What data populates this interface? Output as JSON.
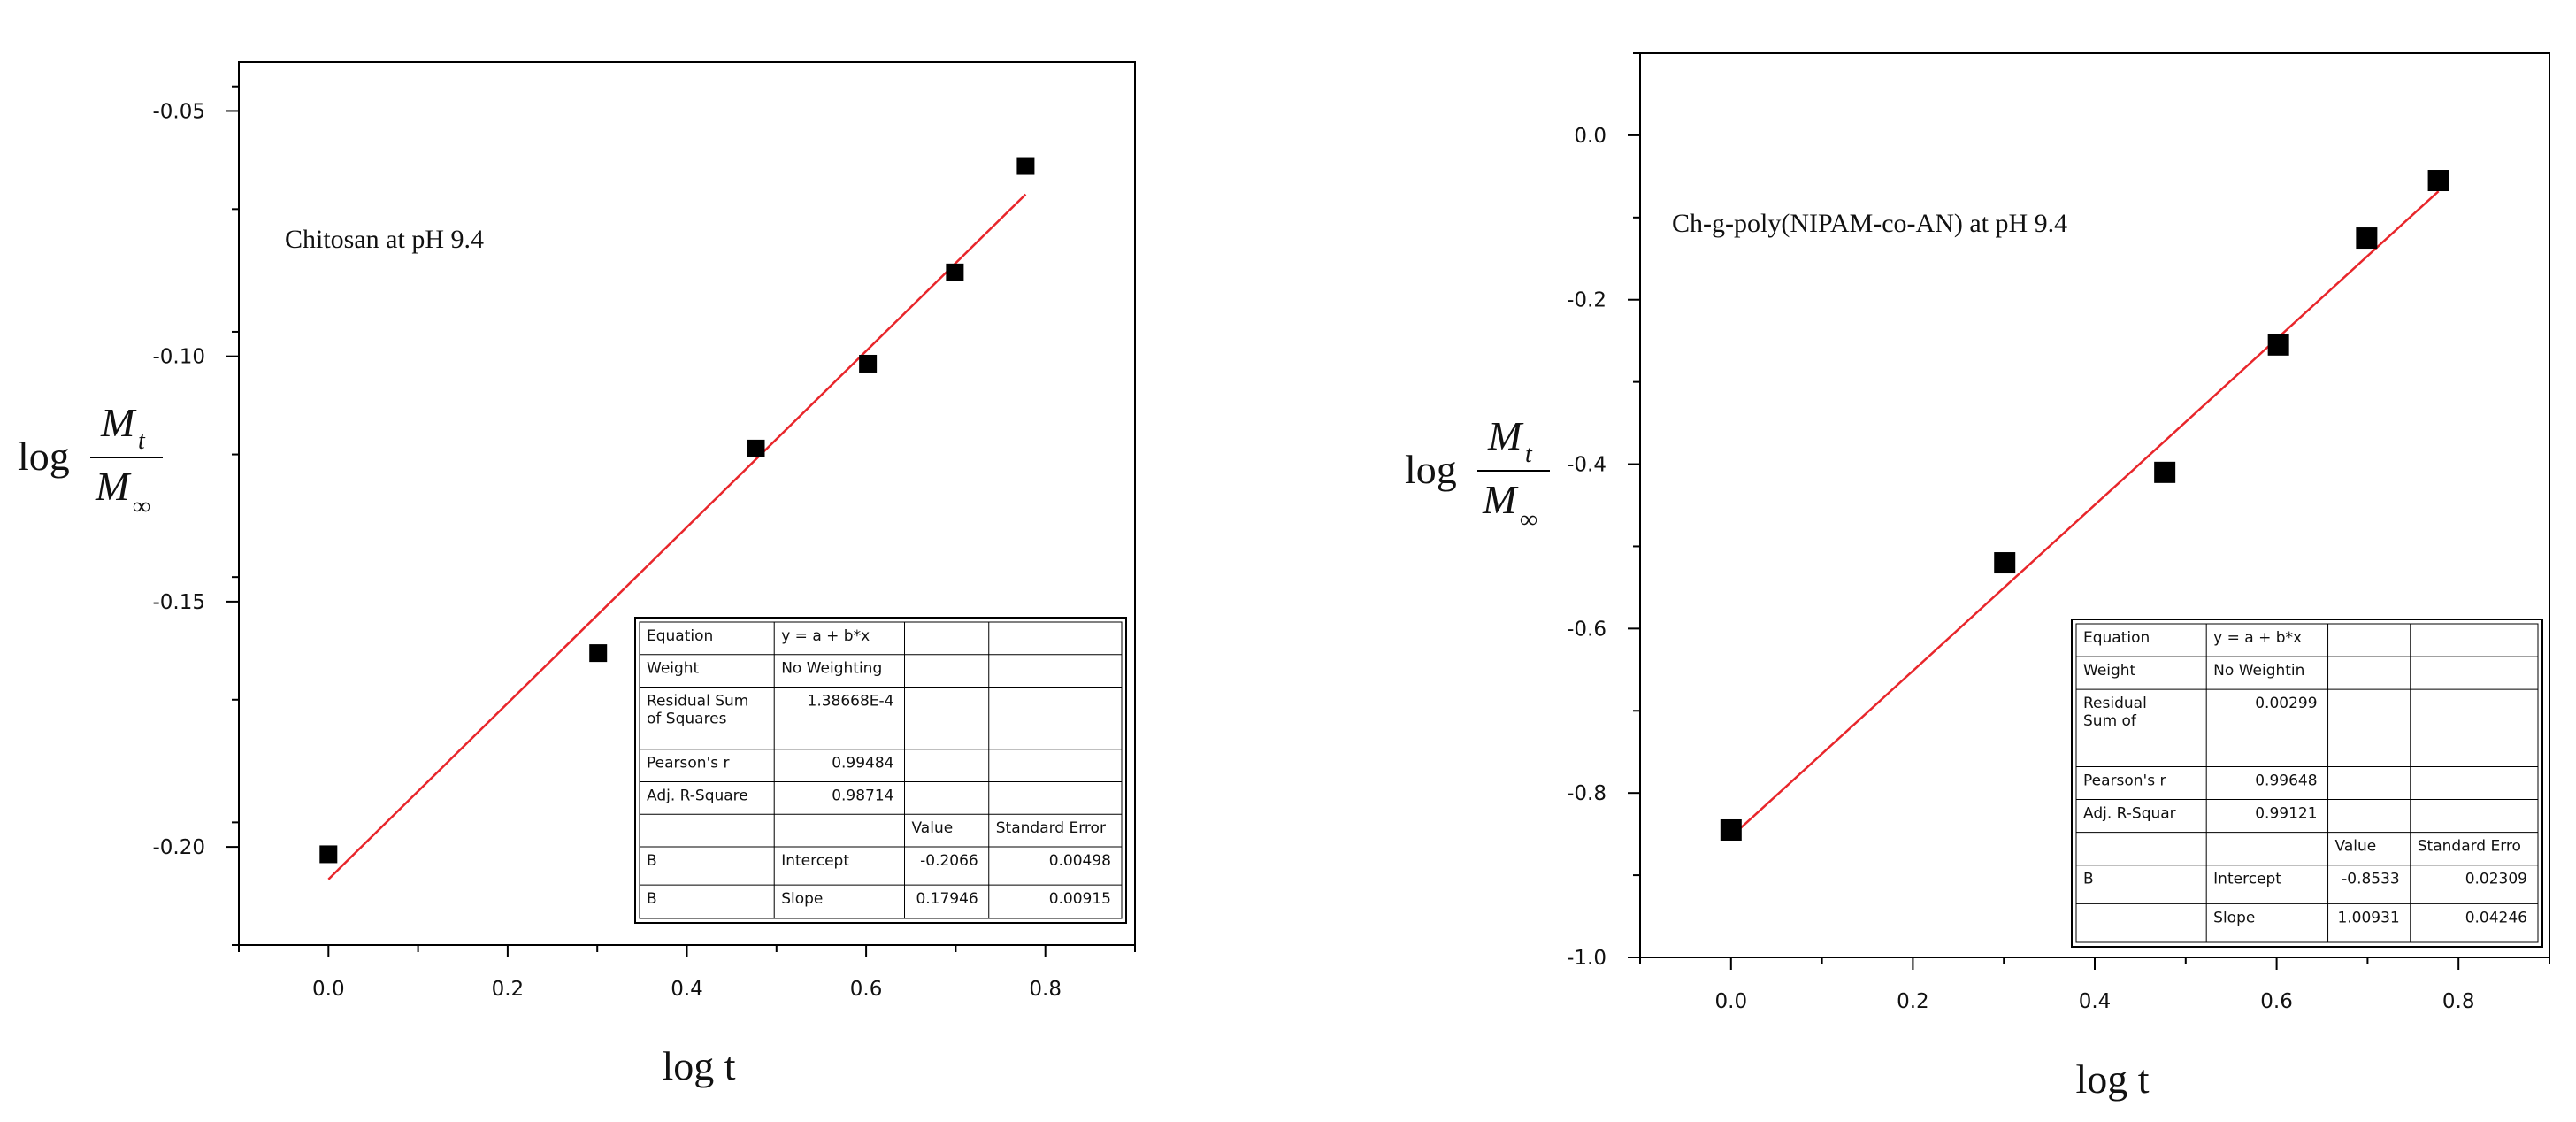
{
  "chart_data": [
    {
      "type": "scatter",
      "annotation": "Chitosan at pH 9.4",
      "xlabel": "log t",
      "ylabel": {
        "prefix": "log",
        "numerator": "M",
        "numerator_sub": "t",
        "denominator": "M",
        "denominator_sub": "∞"
      },
      "xlim": [
        -0.1,
        0.9
      ],
      "ylim": [
        -0.22,
        -0.04
      ],
      "xticks": [
        "0.0",
        "0.2",
        "0.4",
        "0.6",
        "0.8"
      ],
      "yticks": [
        "-0.20",
        "-0.15",
        "-0.10",
        "-0.05"
      ],
      "grid": false,
      "points": {
        "x": [
          0.0,
          0.301,
          0.477,
          0.602,
          0.699,
          0.778
        ],
        "y": [
          -0.2015,
          -0.1605,
          -0.1188,
          -0.1015,
          -0.0829,
          -0.0612
        ]
      },
      "fit": {
        "intercept": -0.2066,
        "slope": 0.17946,
        "x_range": [
          0.0,
          0.778
        ]
      },
      "marker_color": "#000000",
      "fit_color": "#e8262b",
      "fit_table": {
        "rows": [
          [
            "Equation",
            "y = a + b*x",
            "",
            ""
          ],
          [
            "Weight",
            "No Weighting",
            "",
            ""
          ],
          [
            "Residual Sum of Squares",
            "1.38668E-4",
            "",
            ""
          ],
          [
            "Pearson's r",
            "0.99484",
            "",
            ""
          ],
          [
            "Adj. R-Square",
            "0.98714",
            "",
            ""
          ],
          [
            "",
            "",
            "Value",
            "Standard Error"
          ],
          [
            "B",
            "Intercept",
            "-0.2066",
            "0.00498"
          ],
          [
            "B",
            "Slope",
            "0.17946",
            "0.00915"
          ]
        ]
      }
    },
    {
      "type": "scatter",
      "annotation": "Ch-g-poly(NIPAM-co-AN) at pH 9.4",
      "xlabel": "log t",
      "ylabel": {
        "prefix": "log",
        "numerator": "M",
        "numerator_sub": "t",
        "denominator": "M",
        "denominator_sub": "∞"
      },
      "xlim": [
        -0.1,
        0.9
      ],
      "ylim": [
        -1.0,
        0.1
      ],
      "xticks": [
        "0.0",
        "0.2",
        "0.4",
        "0.6",
        "0.8"
      ],
      "yticks": [
        "-1.0",
        "-0.8",
        "-0.6",
        "-0.4",
        "-0.2",
        "0.0"
      ],
      "grid": false,
      "points": {
        "x": [
          0.0,
          0.301,
          0.477,
          0.602,
          0.699,
          0.778
        ],
        "y": [
          -0.845,
          -0.52,
          -0.41,
          -0.255,
          -0.125,
          -0.055
        ]
      },
      "fit": {
        "intercept": -0.8533,
        "slope": 1.00931,
        "x_range": [
          0.0,
          0.778
        ]
      },
      "marker_color": "#000000",
      "fit_color": "#e8262b",
      "fit_table": {
        "rows": [
          [
            "Equation",
            "y = a + b*x",
            "",
            ""
          ],
          [
            "Weight",
            "No Weightin",
            "",
            ""
          ],
          [
            "Residual Sum of Squares",
            "0.00299",
            "",
            ""
          ],
          [
            "Pearson's r",
            "0.99648",
            "",
            ""
          ],
          [
            "Adj. R-Squar",
            "0.99121",
            "",
            ""
          ],
          [
            "",
            "",
            "Value",
            "Standard Erro"
          ],
          [
            "B",
            "Intercept",
            "-0.8533",
            "0.02309"
          ],
          [
            "",
            "Slope",
            "1.00931",
            "0.04246"
          ]
        ]
      }
    }
  ]
}
